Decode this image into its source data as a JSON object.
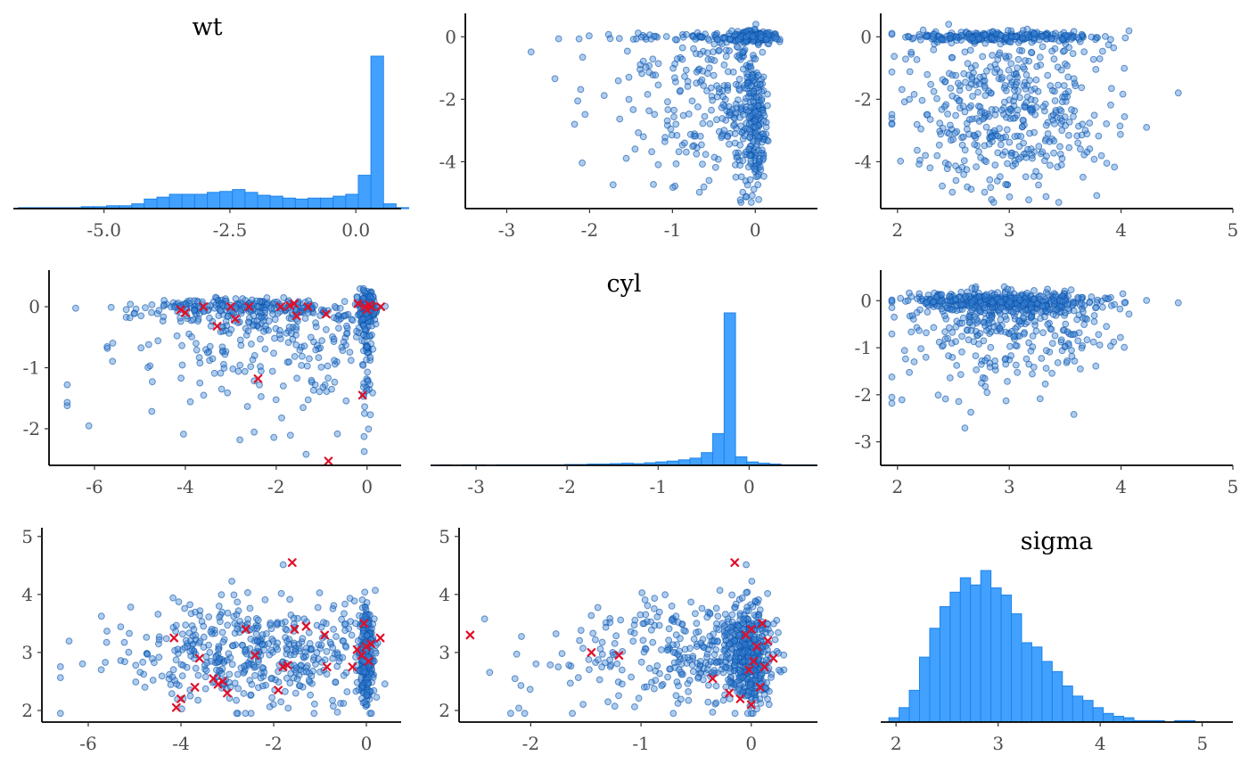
{
  "colors": {
    "point_fill": "#3e86d6",
    "point_stroke": "#0a52a8",
    "histogram_fill": "#42a1ff",
    "histogram_stroke": "#1d83ea",
    "divergence_marker": "#e0102a",
    "axis": "#000000",
    "tick_text": "#4d4d4d"
  },
  "chart_data": [
    {
      "panel": "hist-wt",
      "type": "bar",
      "title": "wt",
      "xlim": [
        -6.8,
        0.9
      ],
      "xticks": [
        -5.0,
        -2.5,
        0.0
      ],
      "xtick_labels": [
        "-5.0",
        "-2.5",
        "0.0"
      ],
      "bin_start": -6.7,
      "bin_width": 0.25,
      "counts": [
        1,
        1,
        1,
        1,
        1,
        2,
        2,
        3,
        3,
        5,
        10,
        12,
        15,
        15,
        15,
        17,
        18,
        20,
        17,
        14,
        13,
        11,
        10,
        11,
        11,
        13,
        15,
        35,
        160,
        5,
        1
      ]
    },
    {
      "panel": "scatter-wt-cyl",
      "type": "scatter",
      "x_param": "cyl",
      "y_param": "wt",
      "xlim": [
        -3.5,
        0.75
      ],
      "ylim": [
        -5.5,
        0.75
      ],
      "xticks": [
        -3,
        -2,
        -1,
        0
      ],
      "xtick_labels": [
        "-3",
        "-2",
        "-1",
        "0"
      ],
      "yticks": [
        -4,
        -2,
        0
      ],
      "ytick_labels": [
        "-4",
        "-2",
        "0"
      ]
    },
    {
      "panel": "scatter-wt-sigma",
      "type": "scatter",
      "x_param": "sigma",
      "y_param": "wt",
      "xlim": [
        1.85,
        5.0
      ],
      "ylim": [
        -5.5,
        0.75
      ],
      "xticks": [
        2,
        3,
        4,
        5
      ],
      "xtick_labels": [
        "2",
        "3",
        "4",
        "5"
      ],
      "yticks": [
        -4,
        -2,
        0
      ],
      "ytick_labels": [
        "-4",
        "-2",
        "0"
      ]
    },
    {
      "panel": "scatter-cyl-wt",
      "type": "scatter",
      "x_param": "wt",
      "y_param": "cyl",
      "xlim": [
        -7.0,
        0.75
      ],
      "ylim": [
        -2.6,
        0.6
      ],
      "xticks": [
        -6,
        -4,
        -2,
        0
      ],
      "xtick_labels": [
        "-6",
        "-4",
        "-2",
        "0"
      ],
      "yticks": [
        -2,
        -1,
        0
      ],
      "ytick_labels": [
        "-2",
        "-1",
        "0"
      ],
      "divergent": [
        [
          -4.1,
          -0.05
        ],
        [
          -4.0,
          -0.1
        ],
        [
          -3.6,
          0.0
        ],
        [
          -3.3,
          -0.32
        ],
        [
          -3.0,
          0.0
        ],
        [
          -2.9,
          -0.2
        ],
        [
          -2.6,
          0.0
        ],
        [
          -2.4,
          -1.18
        ],
        [
          -1.9,
          0.0
        ],
        [
          -1.7,
          0.02
        ],
        [
          -1.6,
          0.05
        ],
        [
          -1.55,
          -0.15
        ],
        [
          -1.3,
          0.0
        ],
        [
          -0.9,
          -0.12
        ],
        [
          -0.85,
          -2.53
        ],
        [
          -0.2,
          0.05
        ],
        [
          -0.1,
          -1.45
        ],
        [
          -0.05,
          0.0
        ],
        [
          0.0,
          -0.05
        ],
        [
          0.05,
          0.03
        ],
        [
          0.1,
          0.0
        ],
        [
          0.3,
          0.0
        ]
      ]
    },
    {
      "panel": "hist-cyl",
      "type": "bar",
      "title": "cyl",
      "xlim": [
        -3.5,
        0.75
      ],
      "xticks": [
        -3,
        -2,
        -1,
        0
      ],
      "xtick_labels": [
        "-3",
        "-2",
        "-1",
        "0"
      ],
      "bin_start": -3.4,
      "bin_width": 0.125,
      "counts": [
        1,
        0,
        1,
        1,
        0,
        1,
        1,
        1,
        1,
        1,
        1,
        2,
        2,
        3,
        3,
        4,
        5,
        4,
        6,
        8,
        10,
        13,
        17,
        30,
        75,
        360,
        20,
        8,
        5,
        3,
        1,
        1,
        1
      ]
    },
    {
      "panel": "scatter-cyl-sigma",
      "type": "scatter",
      "x_param": "sigma",
      "y_param": "cyl",
      "xlim": [
        1.85,
        5.0
      ],
      "ylim": [
        -3.5,
        0.65
      ],
      "xticks": [
        2,
        3,
        4,
        5
      ],
      "xtick_labels": [
        "2",
        "3",
        "4",
        "5"
      ],
      "yticks": [
        -3,
        -2,
        -1,
        0
      ],
      "ytick_labels": [
        "-3",
        "-2",
        "-1",
        "0"
      ]
    },
    {
      "panel": "scatter-sigma-wt",
      "type": "scatter",
      "x_param": "wt",
      "y_param": "sigma",
      "xlim": [
        -7.0,
        0.75
      ],
      "ylim": [
        1.8,
        5.15
      ],
      "xticks": [
        -6,
        -4,
        -2,
        0
      ],
      "xtick_labels": [
        "-6",
        "-4",
        "-2",
        "0"
      ],
      "yticks": [
        2,
        3,
        4,
        5
      ],
      "ytick_labels": [
        "2",
        "3",
        "4",
        "5"
      ],
      "divergent": [
        [
          -4.15,
          3.25
        ],
        [
          -4.1,
          2.05
        ],
        [
          -4.0,
          2.2
        ],
        [
          -3.7,
          2.4
        ],
        [
          -3.6,
          2.9
        ],
        [
          -3.3,
          2.55
        ],
        [
          -3.2,
          2.45
        ],
        [
          -3.1,
          2.5
        ],
        [
          -3.0,
          2.3
        ],
        [
          -2.6,
          3.4
        ],
        [
          -2.4,
          2.95
        ],
        [
          -1.9,
          2.35
        ],
        [
          -1.8,
          2.75
        ],
        [
          -1.7,
          2.78
        ],
        [
          -1.6,
          4.55
        ],
        [
          -1.55,
          3.4
        ],
        [
          -1.3,
          3.45
        ],
        [
          -0.9,
          3.3
        ],
        [
          -0.85,
          2.75
        ],
        [
          -0.3,
          2.75
        ],
        [
          -0.2,
          3.05
        ],
        [
          -0.1,
          2.95
        ],
        [
          -0.05,
          3.5
        ],
        [
          0.0,
          3.1
        ],
        [
          0.05,
          2.85
        ],
        [
          0.1,
          3.15
        ],
        [
          0.3,
          3.25
        ]
      ]
    },
    {
      "panel": "scatter-sigma-cyl",
      "type": "scatter",
      "x_param": "cyl",
      "y_param": "sigma",
      "xlim": [
        -2.65,
        0.6
      ],
      "ylim": [
        1.8,
        5.15
      ],
      "xticks": [
        -2,
        -1,
        0
      ],
      "xtick_labels": [
        "-2",
        "-1",
        "0"
      ],
      "yticks": [
        2,
        3,
        4,
        5
      ],
      "ytick_labels": [
        "2",
        "3",
        "4",
        "5"
      ],
      "divergent": [
        [
          -2.55,
          3.3
        ],
        [
          -1.45,
          3.0
        ],
        [
          -1.2,
          2.95
        ],
        [
          -0.35,
          2.55
        ],
        [
          -0.2,
          2.3
        ],
        [
          -0.15,
          4.55
        ],
        [
          -0.1,
          2.2
        ],
        [
          -0.05,
          3.3
        ],
        [
          -0.02,
          2.7
        ],
        [
          0.0,
          2.1
        ],
        [
          0.0,
          3.4
        ],
        [
          0.02,
          2.85
        ],
        [
          0.05,
          3.1
        ],
        [
          0.08,
          2.4
        ],
        [
          0.1,
          3.5
        ],
        [
          0.12,
          2.75
        ],
        [
          0.15,
          3.2
        ],
        [
          0.2,
          2.9
        ]
      ]
    },
    {
      "panel": "hist-sigma",
      "type": "bar",
      "title": "sigma",
      "xlim": [
        1.85,
        5.3
      ],
      "xticks": [
        2,
        3,
        4,
        5
      ],
      "xtick_labels": [
        "2",
        "3",
        "4",
        "5"
      ],
      "bin_start": 1.93,
      "bin_width": 0.1,
      "counts": [
        3,
        10,
        22,
        45,
        65,
        80,
        90,
        100,
        95,
        105,
        93,
        88,
        75,
        55,
        52,
        42,
        35,
        25,
        18,
        15,
        10,
        6,
        4,
        3,
        1,
        1,
        1,
        0,
        1,
        1,
        0,
        0
      ]
    }
  ]
}
